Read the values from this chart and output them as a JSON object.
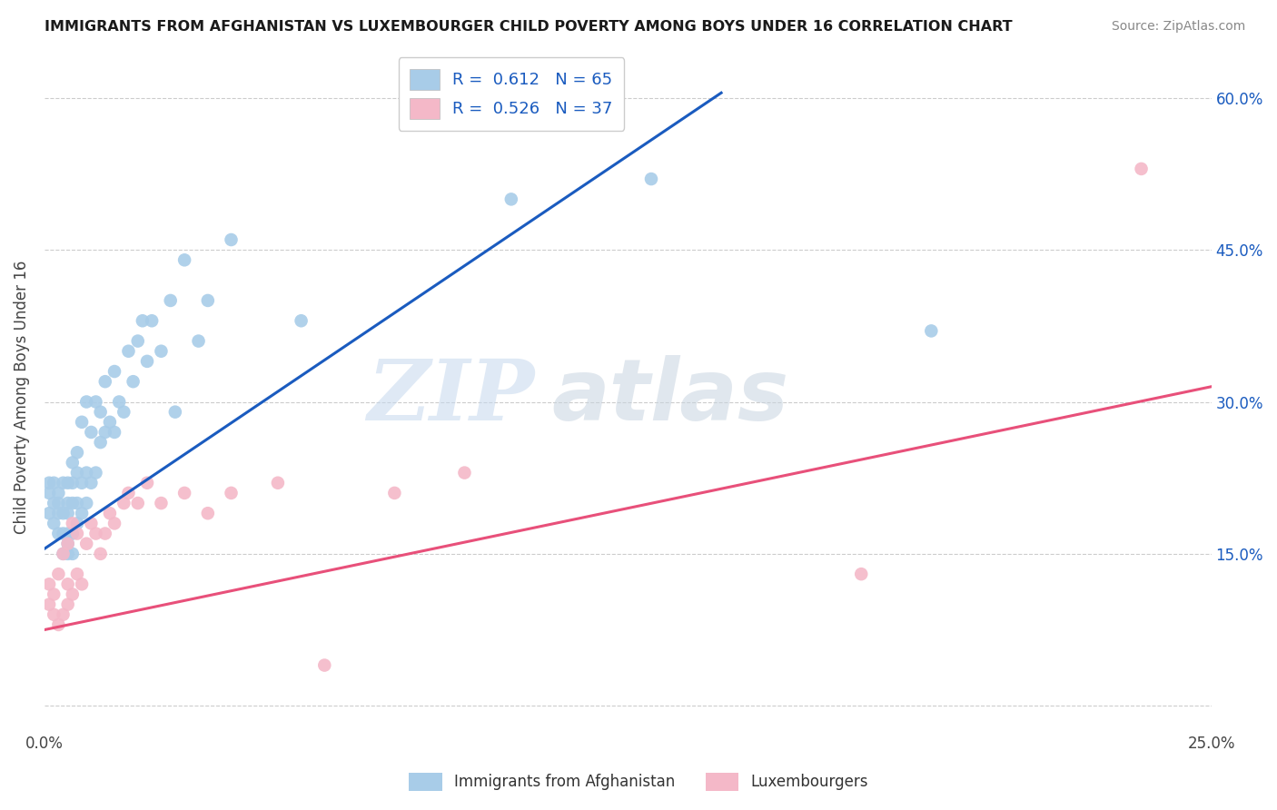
{
  "title": "IMMIGRANTS FROM AFGHANISTAN VS LUXEMBOURGER CHILD POVERTY AMONG BOYS UNDER 16 CORRELATION CHART",
  "source": "Source: ZipAtlas.com",
  "ylabel": "Child Poverty Among Boys Under 16",
  "x_min": 0.0,
  "x_max": 0.25,
  "y_min": -0.025,
  "y_max": 0.635,
  "blue_color": "#a8cce8",
  "pink_color": "#f4b8c8",
  "blue_line_color": "#1a5bbf",
  "pink_line_color": "#e8507a",
  "r_blue": 0.612,
  "n_blue": 65,
  "r_pink": 0.526,
  "n_pink": 37,
  "legend_label_blue": "Immigrants from Afghanistan",
  "legend_label_pink": "Luxembourgers",
  "watermark_zip": "ZIP",
  "watermark_atlas": "atlas",
  "blue_line_x0": 0.0,
  "blue_line_y0": 0.155,
  "blue_line_x1": 0.145,
  "blue_line_y1": 0.605,
  "pink_line_x0": 0.0,
  "pink_line_y0": 0.075,
  "pink_line_x1": 0.25,
  "pink_line_y1": 0.315,
  "blue_scatter_x": [
    0.001,
    0.001,
    0.001,
    0.002,
    0.002,
    0.002,
    0.003,
    0.003,
    0.003,
    0.003,
    0.004,
    0.004,
    0.004,
    0.004,
    0.005,
    0.005,
    0.005,
    0.005,
    0.005,
    0.005,
    0.006,
    0.006,
    0.006,
    0.006,
    0.006,
    0.007,
    0.007,
    0.007,
    0.007,
    0.008,
    0.008,
    0.008,
    0.009,
    0.009,
    0.009,
    0.01,
    0.01,
    0.011,
    0.011,
    0.012,
    0.012,
    0.013,
    0.013,
    0.014,
    0.015,
    0.015,
    0.016,
    0.017,
    0.018,
    0.019,
    0.02,
    0.021,
    0.022,
    0.023,
    0.025,
    0.027,
    0.028,
    0.03,
    0.033,
    0.035,
    0.04,
    0.055,
    0.1,
    0.13,
    0.19
  ],
  "blue_scatter_y": [
    0.19,
    0.21,
    0.22,
    0.18,
    0.2,
    0.22,
    0.17,
    0.19,
    0.2,
    0.21,
    0.15,
    0.17,
    0.19,
    0.22,
    0.15,
    0.16,
    0.17,
    0.19,
    0.2,
    0.22,
    0.15,
    0.17,
    0.2,
    0.22,
    0.24,
    0.18,
    0.2,
    0.23,
    0.25,
    0.19,
    0.22,
    0.28,
    0.2,
    0.23,
    0.3,
    0.22,
    0.27,
    0.23,
    0.3,
    0.26,
    0.29,
    0.27,
    0.32,
    0.28,
    0.27,
    0.33,
    0.3,
    0.29,
    0.35,
    0.32,
    0.36,
    0.38,
    0.34,
    0.38,
    0.35,
    0.4,
    0.29,
    0.44,
    0.36,
    0.4,
    0.46,
    0.38,
    0.5,
    0.52,
    0.37
  ],
  "pink_scatter_x": [
    0.001,
    0.001,
    0.002,
    0.002,
    0.003,
    0.003,
    0.004,
    0.004,
    0.005,
    0.005,
    0.005,
    0.006,
    0.006,
    0.007,
    0.007,
    0.008,
    0.009,
    0.01,
    0.011,
    0.012,
    0.013,
    0.014,
    0.015,
    0.017,
    0.018,
    0.02,
    0.022,
    0.025,
    0.03,
    0.035,
    0.04,
    0.05,
    0.06,
    0.075,
    0.09,
    0.175,
    0.235
  ],
  "pink_scatter_y": [
    0.1,
    0.12,
    0.09,
    0.11,
    0.08,
    0.13,
    0.09,
    0.15,
    0.1,
    0.12,
    0.16,
    0.11,
    0.18,
    0.13,
    0.17,
    0.12,
    0.16,
    0.18,
    0.17,
    0.15,
    0.17,
    0.19,
    0.18,
    0.2,
    0.21,
    0.2,
    0.22,
    0.2,
    0.21,
    0.19,
    0.21,
    0.22,
    0.04,
    0.21,
    0.23,
    0.13,
    0.53
  ]
}
